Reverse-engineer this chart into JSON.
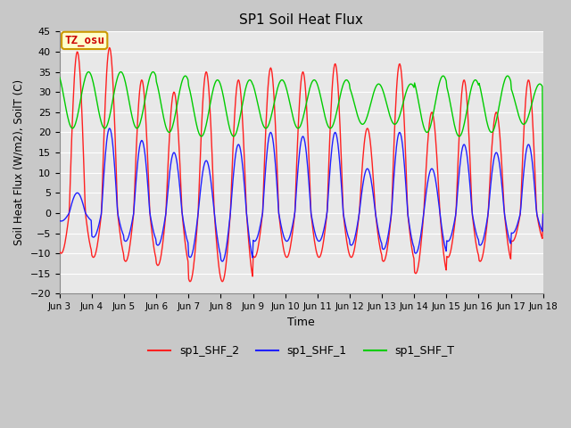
{
  "title": "SP1 Soil Heat Flux",
  "xlabel": "Time",
  "ylabel": "Soil Heat Flux (W/m2), SoilT (C)",
  "ylim": [
    -20,
    45
  ],
  "yticks": [
    -20,
    -15,
    -10,
    -5,
    0,
    5,
    10,
    15,
    20,
    25,
    30,
    35,
    40,
    45
  ],
  "xtick_labels": [
    "Jun 3",
    "Jun 4",
    "Jun 5",
    "Jun 6",
    "Jun 7",
    "Jun 8",
    "Jun 9",
    "Jun 10",
    "Jun 11",
    "Jun 12",
    "Jun 13",
    "Jun 14",
    "Jun 15",
    "Jun 16",
    "Jun 17",
    "Jun 18"
  ],
  "legend_labels": [
    "sp1_SHF_2",
    "sp1_SHF_1",
    "sp1_SHF_T"
  ],
  "legend_colors": [
    "#ff2020",
    "#2020ff",
    "#00cc00"
  ],
  "annotation_text": "TZ_osu",
  "annotation_bg": "#ffffcc",
  "annotation_border": "#cc9900",
  "annotation_text_color": "#cc0000",
  "plot_bg_color": "#e8e8e8",
  "grid_color": "#ffffff",
  "n_days": 15,
  "samples_per_day": 48,
  "shf2_pos_peaks": [
    40,
    41,
    33,
    30,
    35,
    33,
    36,
    35,
    37,
    21,
    37,
    25,
    33,
    25,
    33
  ],
  "shf2_neg_troughs": [
    -10,
    -11,
    -12,
    -13,
    -17,
    -17,
    -11,
    -11,
    -11,
    -11,
    -12,
    -15,
    -11,
    -12,
    -7
  ],
  "shf1_pos_peaks": [
    5,
    21,
    18,
    15,
    13,
    17,
    20,
    19,
    20,
    11,
    20,
    11,
    17,
    15,
    17
  ],
  "shf1_neg_troughs": [
    -2,
    -6,
    -7,
    -8,
    -11,
    -12,
    -7,
    -7,
    -7,
    -8,
    -9,
    -10,
    -7,
    -8,
    -5
  ],
  "shft_means": [
    28,
    28,
    28,
    27,
    26,
    26,
    27,
    27,
    27,
    27,
    27,
    27,
    26,
    27,
    27
  ],
  "shft_amps": [
    7,
    7,
    7,
    7,
    7,
    7,
    6,
    6,
    6,
    5,
    5,
    7,
    7,
    7,
    5
  ],
  "shf2_phase": 0.3,
  "shf1_phase": 0.3,
  "shft_phase": 0.65
}
